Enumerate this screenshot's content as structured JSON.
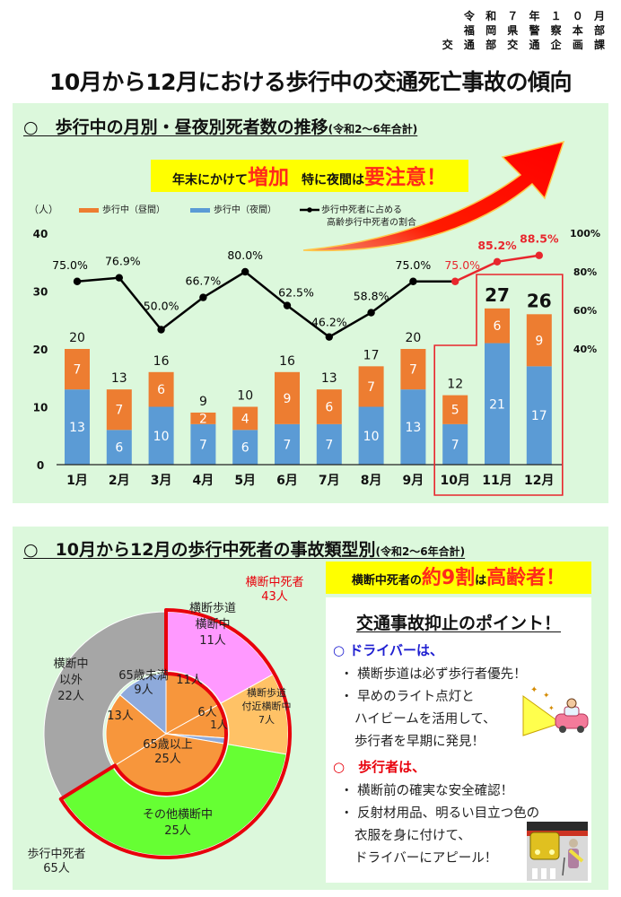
{
  "header": {
    "org_lines": [
      "令 和 ７ 年 １ ０ 月",
      "福 岡 県 警 察 本 部",
      "交 通 部 交 通 企 画 課"
    ],
    "title": "10月から12月における歩行中の交通死亡事故の傾向"
  },
  "section1": {
    "title": "○　歩行中の月別・昼夜別死者数の推移",
    "title_note": "(令和2～6年合計)",
    "callout": {
      "part1": "年末にかけて",
      "emph1": "増加",
      "part2": "　特に夜間は",
      "emph2": "要注意！"
    }
  },
  "chart_data": [
    {
      "type": "bar",
      "stacked": true,
      "title": "歩行中の月別・昼夜別死者数の推移",
      "ylabel": "（人）",
      "y2label": "歩行中死者に占める高齢歩行中死者の割合",
      "ylim": [
        0,
        40
      ],
      "yticks": [
        0,
        10,
        20,
        30,
        40
      ],
      "y2lim": [
        40,
        100
      ],
      "y2ticks": [
        "40%",
        "60%",
        "80%",
        "100%"
      ],
      "y2tick_values": [
        40,
        60,
        80,
        100
      ],
      "categories": [
        "1月",
        "2月",
        "3月",
        "4月",
        "5月",
        "6月",
        "7月",
        "8月",
        "9月",
        "10月",
        "11月",
        "12月"
      ],
      "series": [
        {
          "name": "歩行中（夜間）",
          "color": "#5b9bd5",
          "values": [
            13,
            6,
            10,
            7,
            6,
            7,
            7,
            10,
            13,
            7,
            21,
            17
          ]
        },
        {
          "name": "歩行中（昼間）",
          "color": "#ed7d31",
          "values": [
            7,
            7,
            6,
            2,
            4,
            9,
            6,
            7,
            7,
            5,
            6,
            9
          ]
        }
      ],
      "totals": [
        20,
        13,
        16,
        9,
        10,
        16,
        13,
        17,
        20,
        12,
        27,
        26
      ],
      "line_series": {
        "name": "歩行中死者に占める高齢歩行中死者の割合",
        "legend_lines": [
          "歩行中死者に占める",
          "高齢歩行中死者の割合"
        ],
        "axis": "right",
        "values": [
          75.0,
          76.9,
          50.0,
          66.7,
          80.0,
          62.5,
          46.2,
          58.8,
          75.0,
          75.0,
          85.2,
          88.5
        ],
        "labels": [
          "75.0%",
          "76.9%",
          "50.0%",
          "66.7%",
          "80.0%",
          "62.5%",
          "46.2%",
          "58.8%",
          "75.0%",
          "75.0%",
          "85.2%",
          "88.5%"
        ],
        "color": "#000000",
        "highlight_color": "#e8262d",
        "highlight_from_index": 9
      },
      "legend_placement": "top",
      "highlight_categories": [
        "10月",
        "11月",
        "12月"
      ],
      "highlight_box_color": "#e8262d"
    },
    {
      "type": "pie",
      "title": "10月から12月の歩行中死者の事故類型別",
      "total_label": [
        "歩行中死者",
        "65人"
      ],
      "outer_ring": [
        {
          "name": "横断歩道横断中",
          "label_lines": [
            "横断歩道",
            "横断中",
            "11人"
          ],
          "value": 11,
          "color": "#ff99ff"
        },
        {
          "name": "横断歩道付近横断中",
          "label_lines": [
            "横断歩道",
            "付近横断中",
            "7人"
          ],
          "value": 7,
          "color": "#ffc266"
        },
        {
          "name": "その他横断中",
          "label_lines": [
            "その他横断中",
            "25人"
          ],
          "value": 25,
          "color": "#66ff33"
        },
        {
          "name": "横断中以外",
          "label_lines": [
            "横断中",
            "以外",
            "22人"
          ],
          "value": 22,
          "color": "#a6a6a6"
        }
      ],
      "crossing_group": {
        "label_lines": [
          "横断中死者",
          "43人"
        ],
        "value": 43,
        "outline_color": "#e8000b"
      },
      "inner_ring": [
        {
          "name": "65歳以上(横断歩道横断中)",
          "label": "11人",
          "value": 11,
          "color": "#f7963c"
        },
        {
          "name": "65歳以上(横断歩道付近横断中)",
          "label": "6人",
          "value": 6,
          "color": "#f7963c"
        },
        {
          "name": "65歳未満(横断歩道付近横断中)",
          "label": "1人",
          "value": 1,
          "color": "#8eaadb"
        },
        {
          "name": "65歳以上(その他横断中)",
          "label": "25人",
          "value": 25,
          "color": "#f7963c"
        },
        {
          "name": "65歳以上(横断中以外)",
          "label": "13人",
          "value": 13,
          "color": "#f7963c"
        },
        {
          "name": "65歳未満(横断中以外)",
          "label": "9人",
          "value": 9,
          "color": "#8eaadb"
        }
      ],
      "inner_group_labels": {
        "over65": [
          "65歳以上",
          "25人"
        ],
        "under65": [
          "65歳未満",
          "9人"
        ]
      }
    }
  ],
  "section2": {
    "title": "○　10月から12月の歩行中死者の事故類型別",
    "title_note": "(令和2～6年合計)",
    "callout": {
      "part1": "横断中死者の",
      "emph1": "約9割",
      "part2": "は",
      "emph2": "高齢者！"
    },
    "points": {
      "title": "交通事故抑止のポイント！",
      "driver_head": "○ ドライバーは、",
      "driver_items": [
        "・ 横断歩道は必ず歩行者優先！",
        "・ 早めのライト点灯と",
        "ハイビームを活用して、",
        "歩行者を早期に発見！"
      ],
      "pedestrian_head": "○　歩行者は、",
      "pedestrian_items": [
        "・ 横断前の確実な安全確認！",
        "・ 反射材用品、明るい目立つ色の",
        "衣服を身に付けて、",
        "ドライバーにアピール！"
      ],
      "driver_color": "#1f1fd1",
      "pedestrian_color": "#e8000b"
    }
  }
}
